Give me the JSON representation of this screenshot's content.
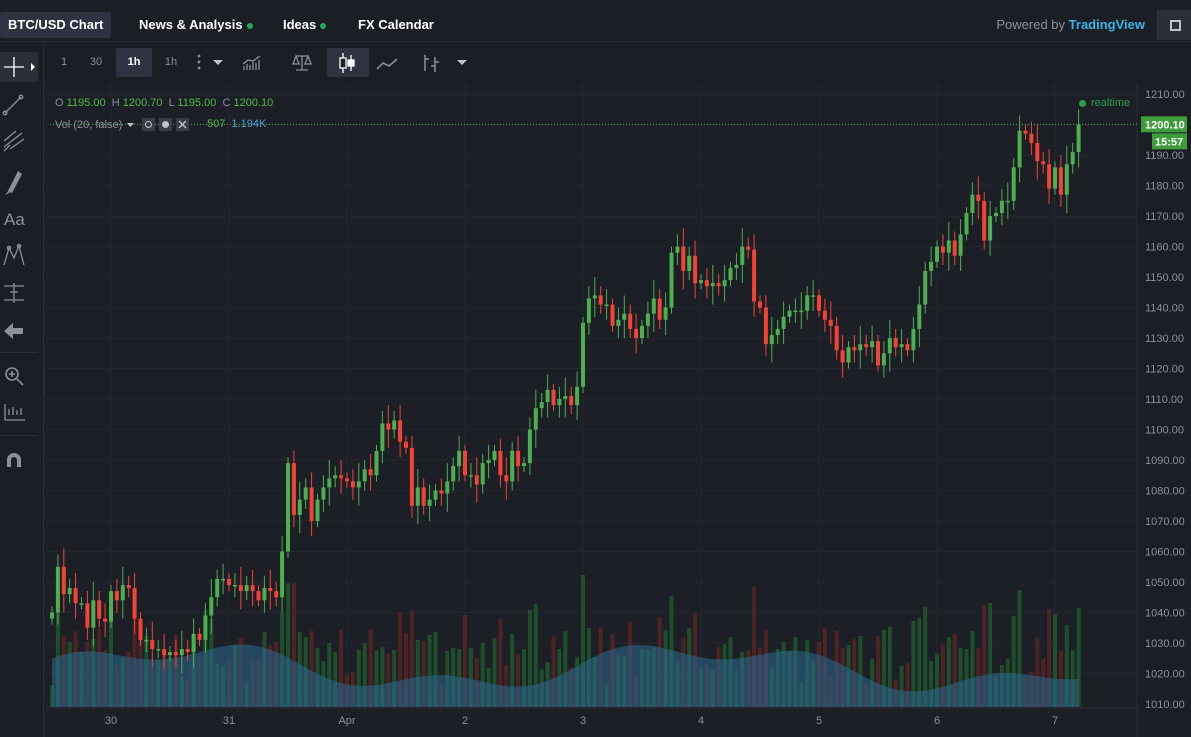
{
  "tabs": [
    {
      "label": "BTC/USD Chart",
      "active": true,
      "dot": false
    },
    {
      "label": "News & Analysis",
      "active": false,
      "dot": true
    },
    {
      "label": "Ideas",
      "active": false,
      "dot": true
    },
    {
      "label": "FX Calendar",
      "active": false,
      "dot": false
    }
  ],
  "powered_prefix": "Powered by ",
  "powered_brand": "TradingView",
  "toolbar": {
    "intervals": [
      "1",
      "30",
      "1h",
      "1h"
    ],
    "active_interval": "1h",
    "icons": [
      "more-icon",
      "dropdown-icon",
      "indicators-icon",
      "compare-icon",
      "candles-icon",
      "line-icon",
      "bars-icon",
      "chart-type-dropdown-icon"
    ]
  },
  "sidebar_icons": [
    "crosshair-icon",
    "trendline-icon",
    "fib-icon",
    "brush-icon",
    "text-icon",
    "pattern-icon",
    "measure-icon",
    "back-icon",
    "zoom-icon",
    "ruler-icon",
    "magnet-icon"
  ],
  "legend": {
    "o_label": "O",
    "o": "1195.00",
    "h_label": "H",
    "h": "1200.70",
    "l_label": "L",
    "l": "1195.00",
    "c_label": "C",
    "c": "1200.10",
    "vol_label": "Vol (20, false)",
    "vol_value": "507",
    "vol_ma": "1.194K"
  },
  "realtime": "realtime",
  "last_price": "1200.10",
  "countdown": "15:57",
  "colors": {
    "up": "#4caf50",
    "down": "#f44336",
    "volume_area": "#2d6a8f",
    "price_label_bg": "#3e9c3b"
  },
  "chart_data": {
    "type": "candlestick",
    "symbol": "BTC/USD",
    "interval": "1h",
    "y_axis": {
      "ticks": [
        1010,
        1020,
        1030,
        1040,
        1050,
        1060,
        1070,
        1080,
        1090,
        1100,
        1110,
        1120,
        1130,
        1140,
        1150,
        1160,
        1170,
        1180,
        1190,
        1200,
        1210
      ],
      "ylim": [
        1009,
        1213
      ]
    },
    "x_axis": {
      "labels": [
        "30",
        "31",
        "Apr",
        "2",
        "3",
        "4",
        "5",
        "6",
        "7"
      ],
      "label_index": [
        10,
        30,
        50,
        70,
        90,
        110,
        130,
        150,
        170
      ]
    },
    "close": [
      1040,
      1055,
      1046,
      1048,
      1043,
      1043,
      1035,
      1044,
      1038,
      1037,
      1047,
      1044,
      1049,
      1048,
      1038,
      1031,
      1031,
      1028,
      1028,
      1026,
      1027,
      1026,
      1028,
      1027,
      1033,
      1031,
      1039,
      1045,
      1051,
      1051,
      1049,
      1049,
      1047,
      1049,
      1047,
      1044,
      1048,
      1047,
      1045,
      1060,
      1089,
      1072,
      1077,
      1081,
      1070,
      1077,
      1081,
      1084,
      1085,
      1084,
      1083,
      1081,
      1083,
      1087,
      1085,
      1093,
      1102,
      1100,
      1103,
      1096,
      1094,
      1075,
      1081,
      1075,
      1077,
      1080,
      1079,
      1083,
      1088,
      1093,
      1085,
      1085,
      1082,
      1089,
      1090,
      1093,
      1085,
      1083,
      1093,
      1088,
      1089,
      1100,
      1107,
      1109,
      1113,
      1108,
      1110,
      1111,
      1108,
      1114,
      1135,
      1143,
      1144,
      1141,
      1141,
      1134,
      1136,
      1138,
      1133,
      1130,
      1134,
      1138,
      1143,
      1136,
      1140,
      1158,
      1160,
      1152,
      1157,
      1148,
      1149,
      1147,
      1148,
      1147,
      1149,
      1153,
      1154,
      1160,
      1159,
      1142,
      1140,
      1128,
      1131,
      1133,
      1137,
      1139,
      1139,
      1139,
      1144,
      1144,
      1139,
      1136,
      1134,
      1126,
      1122,
      1127,
      1126,
      1128,
      1127,
      1129,
      1121,
      1125,
      1130,
      1127,
      1128,
      1126,
      1133,
      1141,
      1152,
      1155,
      1160,
      1158,
      1162,
      1157,
      1164,
      1171,
      1177,
      1175,
      1162,
      1170,
      1171,
      1175,
      1175,
      1186,
      1198,
      1197,
      1194,
      1188,
      1187,
      1179,
      1186,
      1177,
      1187,
      1191,
      1200
    ],
    "volume_ma_visible": true
  }
}
